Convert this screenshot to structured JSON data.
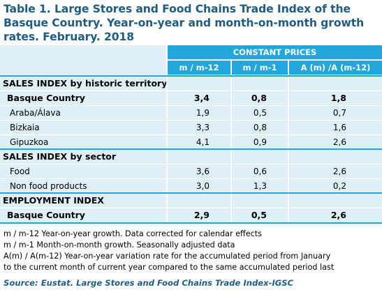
{
  "title": "Table 1. Large Stores and Food Chains Trade Index of the Basque Country. Year-on-year and month-on-month growth rates. February. 2018",
  "header": {
    "group": "CONSTANT PRICES",
    "col1": "m / m-12",
    "col2": "m / m-1",
    "col3": "A (m) /A (m-12)"
  },
  "rows": [
    {
      "label": "SALES INDEX by historic territory",
      "type": "section",
      "v1": "",
      "v2": "",
      "v3": ""
    },
    {
      "label": "Basque Country",
      "type": "bold",
      "v1": "3,4",
      "v2": "0,8",
      "v3": "1,8"
    },
    {
      "label": "Araba/Álava",
      "type": "indent",
      "v1": "1,9",
      "v2": "0,5",
      "v3": "0,7"
    },
    {
      "label": "Bizkaia",
      "type": "indent",
      "v1": "3,3",
      "v2": "0,8",
      "v3": "1,6"
    },
    {
      "label": "Gipuzkoa",
      "type": "indent",
      "v1": "4,1",
      "v2": "0,9",
      "v3": "2,6"
    },
    {
      "label": "SALES INDEX by sector",
      "type": "section",
      "v1": "",
      "v2": "",
      "v3": ""
    },
    {
      "label": "Food",
      "type": "indent",
      "v1": "3,6",
      "v2": "0,6",
      "v3": "2,6"
    },
    {
      "label": "Non food products",
      "type": "indent",
      "v1": "3,0",
      "v2": "1,3",
      "v3": "0,2"
    },
    {
      "label": "EMPLOYMENT INDEX",
      "type": "section",
      "v1": "",
      "v2": "",
      "v3": ""
    },
    {
      "label": "Basque Country",
      "type": "bold",
      "v1": "2,9",
      "v2": "0,5",
      "v3": "2,6"
    }
  ],
  "notes": [
    "m / m-12 Year-on-year growth. Data corrected for calendar effects",
    "m / m-1 Month-on-month growth. Seasonally adjusted data",
    "A(m) / A(m-12) Year-on-year variation rate for the accumulated period from January",
    "to the current month of current year compared to the same accumulated period last"
  ],
  "source": "Source: Eustat. Large Stores and Food Chains Trade Index-IGSC",
  "colors": {
    "accent": "#23a6da",
    "row_bg": "#deeff8",
    "title": "#1f5d85"
  }
}
